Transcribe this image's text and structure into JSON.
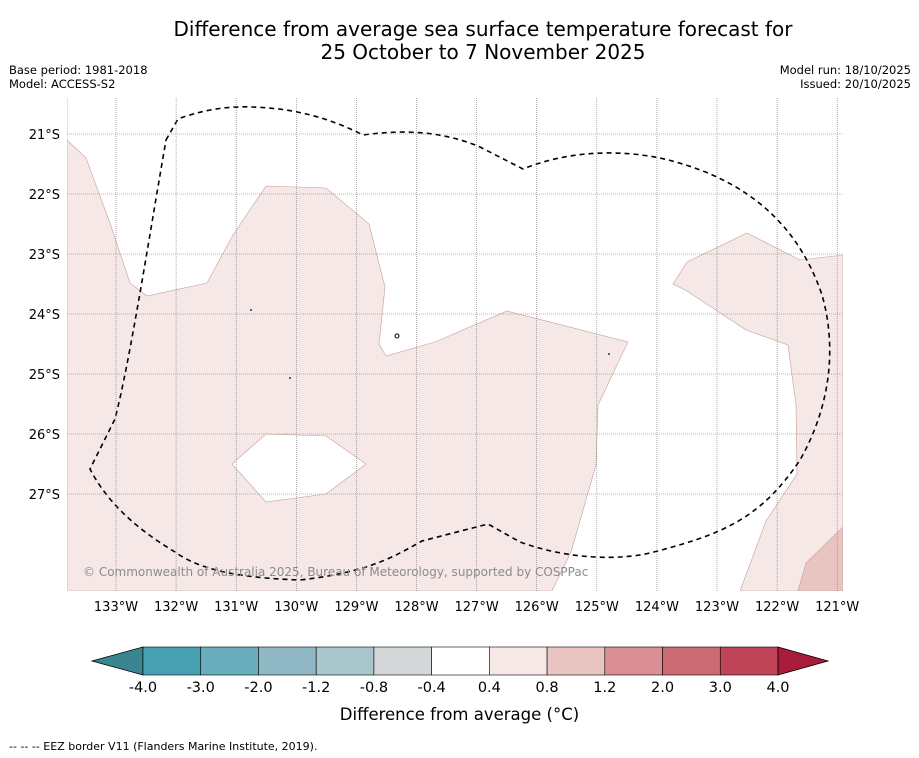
{
  "title": {
    "line1": "Difference from average sea surface temperature forecast for",
    "line2": "25 October to 7 November 2025"
  },
  "meta_left": {
    "base_period": "Base period: 1981-2018",
    "model": "Model: ACCESS-S2"
  },
  "meta_right": {
    "model_run": "Model run: 18/10/2025",
    "issued": "Issued: 20/10/2025"
  },
  "map": {
    "lat_ticks": [
      "21°S",
      "22°S",
      "23°S",
      "24°S",
      "25°S",
      "26°S",
      "27°S"
    ],
    "lon_ticks": [
      "133°W",
      "132°W",
      "131°W",
      "130°W",
      "129°W",
      "128°W",
      "127°W",
      "126°W",
      "125°W",
      "124°W",
      "123°W",
      "122°W",
      "121°W"
    ],
    "copyright": "© Commonwealth of Australia 2025, Bureau of Meteorology, supported by COSPPac"
  },
  "colorbar": {
    "labels": [
      "-4.0",
      "-3.0",
      "-2.0",
      "-1.2",
      "-0.8",
      "-0.4",
      "0.4",
      "0.8",
      "1.2",
      "2.0",
      "3.0",
      "4.0"
    ],
    "colors": [
      "#3b8491",
      "#46a0b2",
      "#6aaebd",
      "#8fb8c4",
      "#a8c6cc",
      "#d3d7d8",
      "#ffffff",
      "#f5e8e7",
      "#e8c5c1",
      "#d98f94",
      "#cc6b74",
      "#bf4457",
      "#a91c3b"
    ],
    "title": "Difference from average (°C)"
  },
  "footnote": "-- -- -- EEZ border V11 (Flanders Marine Institute, 2019)."
}
